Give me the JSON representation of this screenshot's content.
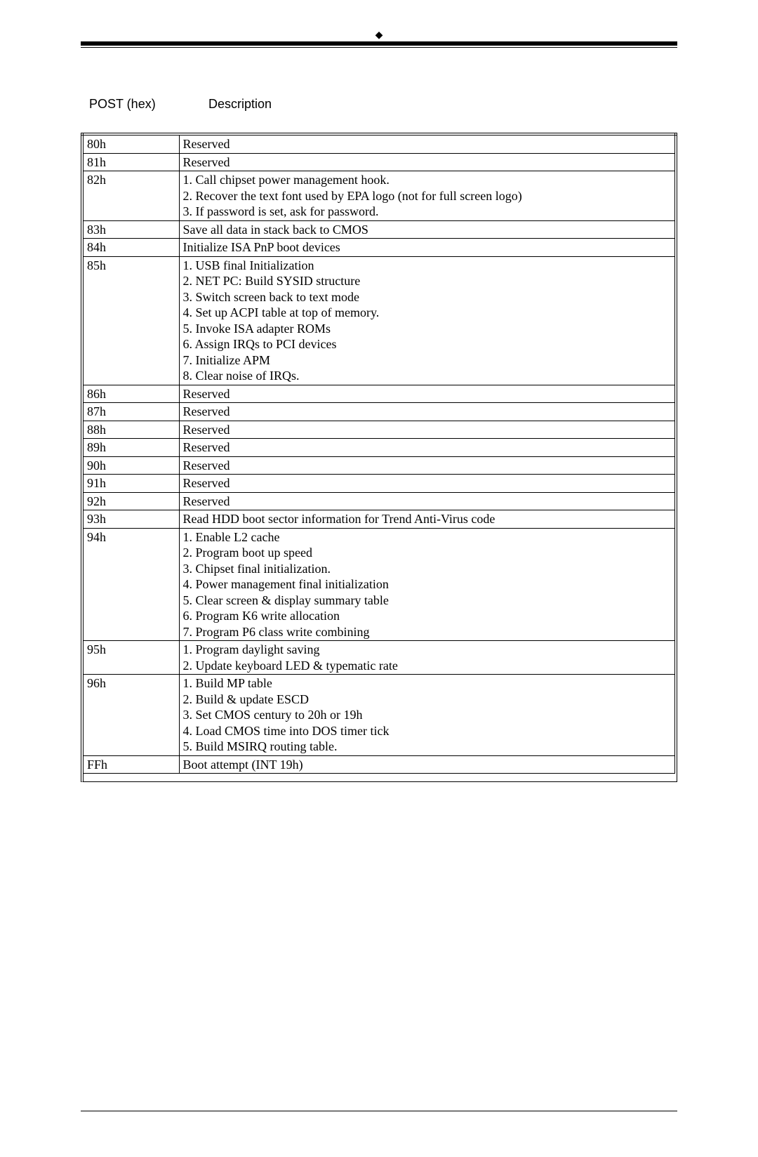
{
  "top_marker": "◆",
  "headers": {
    "post": "POST (hex)",
    "desc": "Description"
  },
  "rows": [
    {
      "code": "80h",
      "desc": [
        "Reserved"
      ]
    },
    {
      "code": "81h",
      "desc": [
        "Reserved"
      ]
    },
    {
      "code": "82h",
      "desc": [
        "1.  Call chipset power management hook.",
        "2.  Recover the text font used by EPA logo (not for full screen logo)",
        "3.  If password is set, ask for password."
      ]
    },
    {
      "code": "83h",
      "desc": [
        "Save all data in stack back to CMOS"
      ]
    },
    {
      "code": "84h",
      "desc": [
        "Initialize ISA PnP boot devices"
      ]
    },
    {
      "code": "85h",
      "desc": [
        "1.  USB final Initialization",
        "2.  NET PC: Build SYSID structure",
        "3.  Switch screen back to text mode",
        "4.  Set up ACPI table at top of memory.",
        "5.  Invoke ISA adapter ROMs",
        "6.  Assign IRQs to PCI devices",
        "7.  Initialize APM",
        "8.  Clear noise of IRQs."
      ]
    },
    {
      "code": "86h",
      "desc": [
        "Reserved"
      ]
    },
    {
      "code": "87h",
      "desc": [
        "Reserved"
      ]
    },
    {
      "code": "88h",
      "desc": [
        "Reserved"
      ]
    },
    {
      "code": "89h",
      "desc": [
        "Reserved"
      ]
    },
    {
      "code": "90h",
      "desc": [
        "Reserved"
      ]
    },
    {
      "code": "91h",
      "desc": [
        "Reserved"
      ]
    },
    {
      "code": "92h",
      "desc": [
        "Reserved"
      ]
    },
    {
      "code": "93h",
      "desc": [
        "Read HDD boot sector information for Trend Anti-Virus code"
      ]
    },
    {
      "code": "94h",
      "desc": [
        "1.  Enable L2 cache",
        "2.  Program boot up speed",
        "3.  Chipset final initialization.",
        "4.  Power management final initialization",
        "5.  Clear screen & display summary table",
        "6.  Program K6 write allocation",
        "7.  Program P6 class write combining"
      ]
    },
    {
      "code": "95h",
      "desc": [
        "1.  Program daylight saving",
        "2.  Update keyboard LED & typematic rate"
      ]
    },
    {
      "code": "96h",
      "desc": [
        "1.  Build MP table",
        "2.  Build & update ESCD",
        "3.  Set CMOS century to 20h or 19h",
        "4.  Load CMOS time into DOS timer tick",
        "5.  Build MSIRQ routing table."
      ]
    },
    {
      "code": "FFh",
      "desc": [
        "Boot attempt (INT 19h)"
      ]
    }
  ],
  "colors": {
    "text": "#000000",
    "background": "#ffffff",
    "border": "#000000"
  },
  "fonts": {
    "header_family": "Arial",
    "body_family": "Times New Roman",
    "header_size_pt": 13,
    "body_size_pt": 13
  }
}
